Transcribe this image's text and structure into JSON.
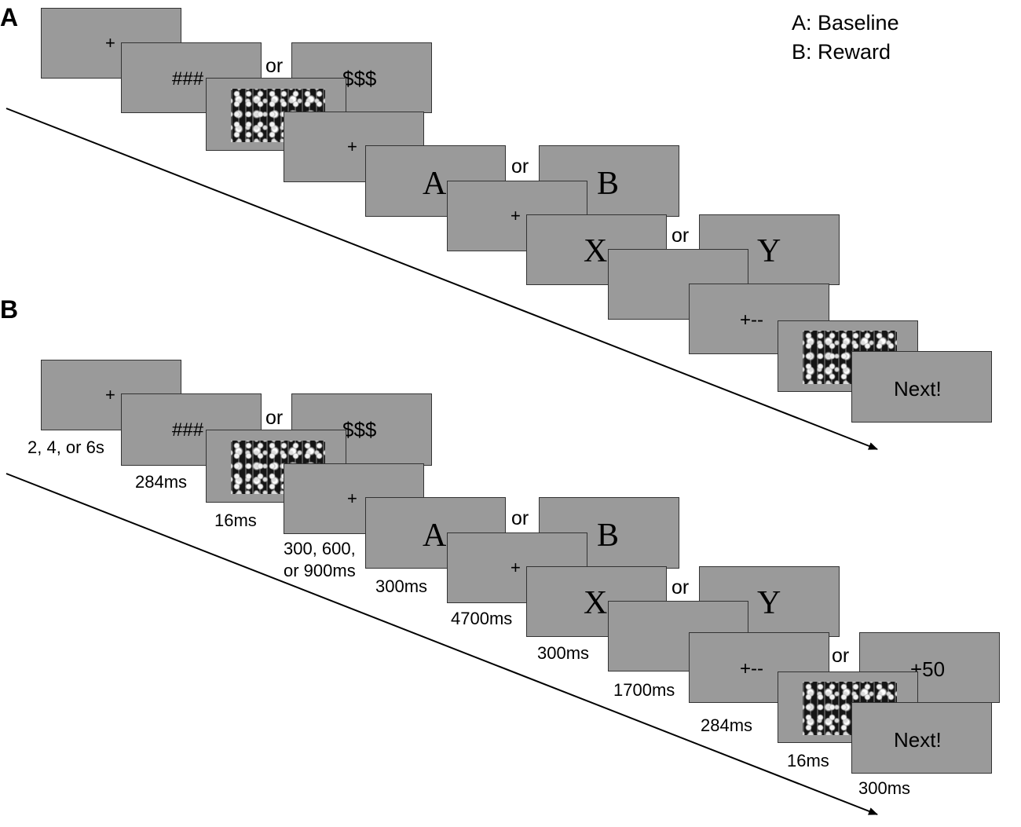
{
  "panels": {
    "a_letter": "A",
    "b_letter": "B"
  },
  "legend": {
    "line1": "A: Baseline",
    "line2": "B: Reward"
  },
  "connector": "or",
  "stimuli": {
    "fixation": "+",
    "neutral_cue": "###",
    "reward_cue": "$$$",
    "face_a": "A",
    "face_b": "B",
    "target_x": "X",
    "target_y": "Y",
    "feedback_neutral": "+--",
    "feedback_reward": "+50",
    "next": "Next!"
  },
  "durations": {
    "fixation": "2, 4, or 6s",
    "cue": "284ms",
    "mask": "16ms",
    "delay_line1": "300, 600,",
    "delay_line2": "or 900ms",
    "ab": "300ms",
    "fixation2": "4700ms",
    "xy": "300ms",
    "blank": "1700ms",
    "feedback": "284ms",
    "mask2": "16ms",
    "next": "300ms"
  },
  "colors": {
    "screen_fill": "#9a9a9a",
    "screen_border": "#333333",
    "arrow": "#000000"
  }
}
